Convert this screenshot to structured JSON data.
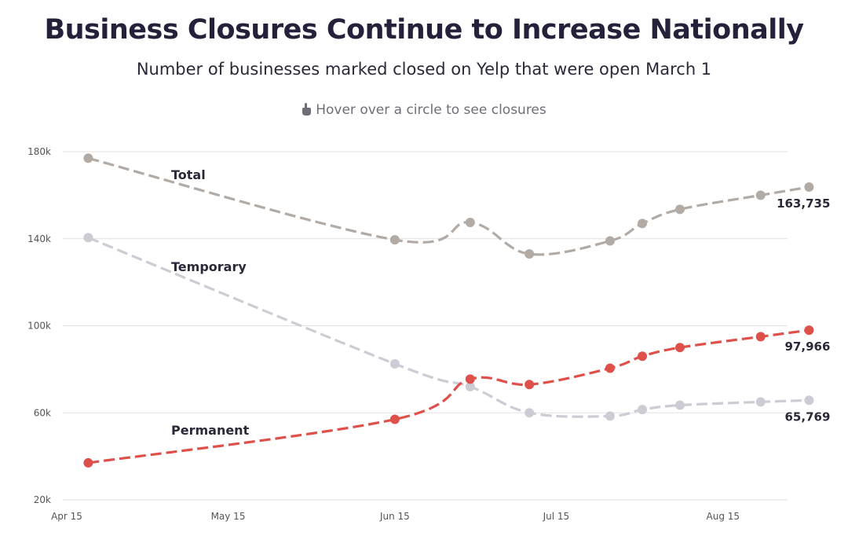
{
  "header": {
    "title": "Business Closures Continue to Increase Nationally",
    "subtitle": "Number of businesses marked closed on Yelp that were open March 1",
    "hint": "Hover over a circle to see closures",
    "hint_icon": "pointing-hand-icon"
  },
  "chart_data": {
    "type": "line",
    "title": "Business Closures Continue to Increase Nationally",
    "subtitle": "Number of businesses marked closed on Yelp that were open March 1",
    "xlabel": "",
    "ylabel": "",
    "x_ticks": [
      "Apr 15",
      "May 15",
      "Jun 15",
      "Jul 15",
      "Aug 15"
    ],
    "y_ticks": [
      "20k",
      "60k",
      "100k",
      "140k",
      "180k"
    ],
    "ylim": [
      20000,
      180000
    ],
    "xlim": [
      "2020-04-15",
      "2020-08-27"
    ],
    "grid": "horizontal",
    "series": [
      {
        "name": "Total",
        "color": "#b2aaa5",
        "x": [
          "2020-04-19",
          "2020-06-15",
          "2020-06-29",
          "2020-07-10",
          "2020-07-25",
          "2020-07-31",
          "2020-08-07",
          "2020-08-22",
          "2020-08-31"
        ],
        "values": [
          177000,
          139500,
          147500,
          133000,
          139000,
          147000,
          153500,
          160000,
          163735
        ],
        "end_label": "163,735"
      },
      {
        "name": "Temporary",
        "color": "#ccccd4",
        "x": [
          "2020-04-19",
          "2020-06-15",
          "2020-06-29",
          "2020-07-10",
          "2020-07-25",
          "2020-07-31",
          "2020-08-07",
          "2020-08-22",
          "2020-08-31"
        ],
        "values": [
          140500,
          82500,
          72000,
          60000,
          58500,
          61500,
          63500,
          65000,
          65769
        ],
        "end_label": "65,769"
      },
      {
        "name": "Permanent",
        "color": "#e0504a",
        "x": [
          "2020-04-19",
          "2020-06-15",
          "2020-06-29",
          "2020-07-10",
          "2020-07-25",
          "2020-07-31",
          "2020-08-07",
          "2020-08-22",
          "2020-08-31"
        ],
        "values": [
          37000,
          57000,
          75500,
          73000,
          80500,
          86000,
          90000,
          95000,
          97966
        ],
        "end_label": "97,966"
      }
    ]
  }
}
